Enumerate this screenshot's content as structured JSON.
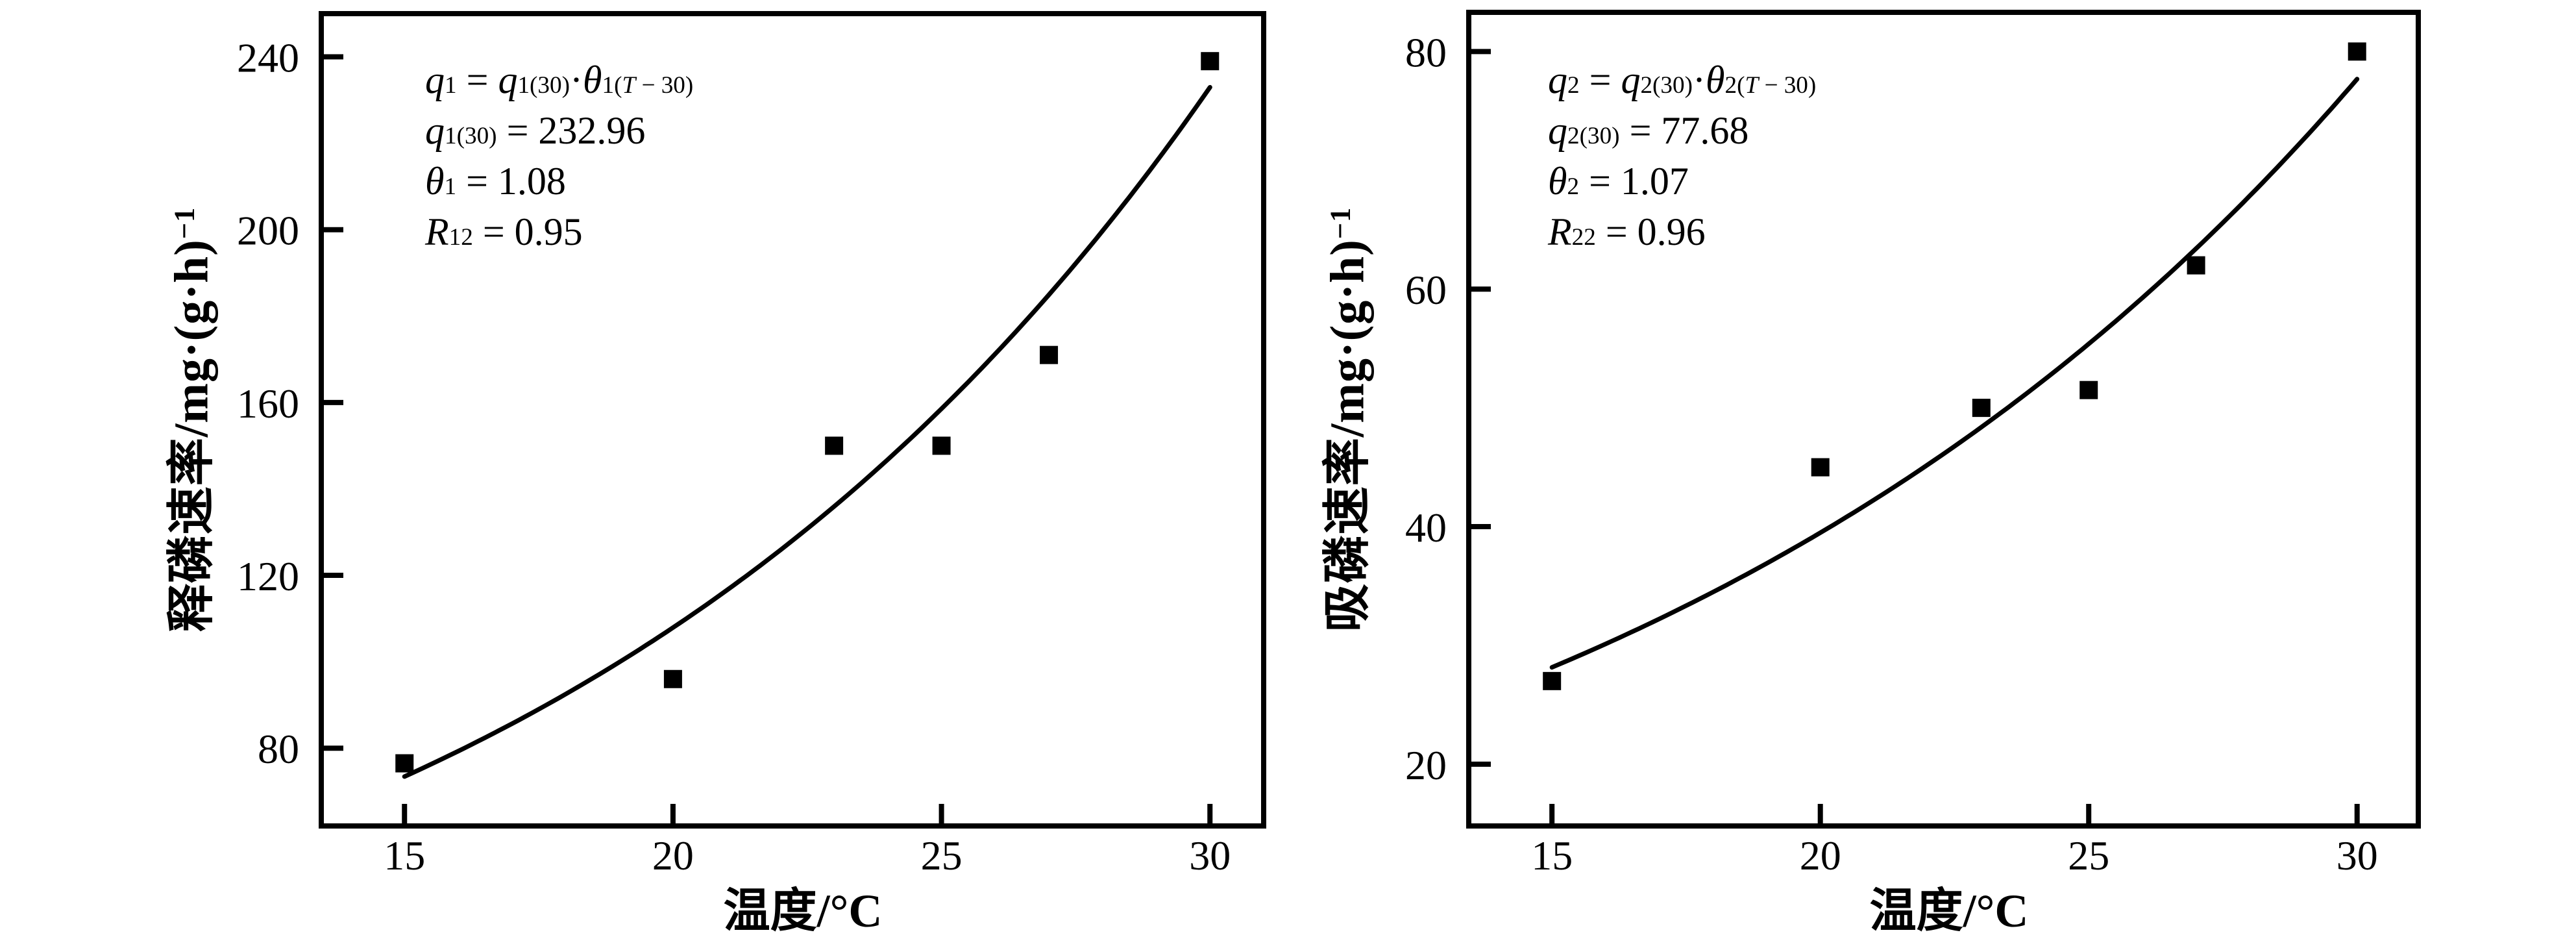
{
  "page": {
    "background": "#ffffff",
    "ink_color": "#000000"
  },
  "chart_data": [
    {
      "type": "scatter",
      "panel": "left",
      "title": "",
      "xlabel": "温度/°C",
      "ylabel": "释磷速率/mg·(g·h)^{−1}",
      "x": [
        15,
        20,
        23,
        25,
        27,
        30
      ],
      "y": [
        76.5,
        96,
        150,
        150,
        171,
        239
      ],
      "x_ticks": [
        15,
        20,
        25,
        30
      ],
      "y_ticks": [
        80,
        120,
        160,
        200,
        240
      ],
      "xlim": [
        13.45,
        31.0
      ],
      "ylim": [
        62,
        250
      ],
      "grid": "off",
      "marker": "filled-square",
      "color": "#000000",
      "fit_curve": {
        "model": "q = q30 · θ^(T−30)",
        "q30": 232.96,
        "theta": 1.08,
        "T_range": [
          15,
          30
        ]
      },
      "annotation_lines": [
        "q_{1} = q_{1(30)}·θ_{1}^{(T − 30)}",
        "q_{1(30)} = 232.96",
        "θ_{1} = 1.08",
        "R_{1}^{2} = 0.95"
      ]
    },
    {
      "type": "scatter",
      "panel": "right",
      "title": "",
      "xlabel": "温度/°C",
      "ylabel": "吸磷速率/mg·(g·h)^{−1}",
      "x": [
        15,
        20,
        23,
        25,
        27,
        30
      ],
      "y": [
        27,
        45,
        50,
        51.5,
        62,
        80
      ],
      "x_ticks": [
        15,
        20,
        25,
        30
      ],
      "y_ticks": [
        20,
        40,
        60,
        80
      ],
      "xlim": [
        13.45,
        31.14
      ],
      "ylim": [
        14.8,
        83.3
      ],
      "grid": "off",
      "marker": "filled-square",
      "color": "#000000",
      "fit_curve": {
        "model": "q = q30 · θ^(T−30)",
        "q30": 77.68,
        "theta": 1.07,
        "T_range": [
          15,
          30
        ]
      },
      "annotation_lines": [
        "q_{2} = q_{2(30)}·θ_{2}^{(T − 30)}",
        "q_{2(30)} = 77.68",
        "θ_{2} = 1.07",
        "R_{2}^{2} = 0.96"
      ]
    }
  ]
}
